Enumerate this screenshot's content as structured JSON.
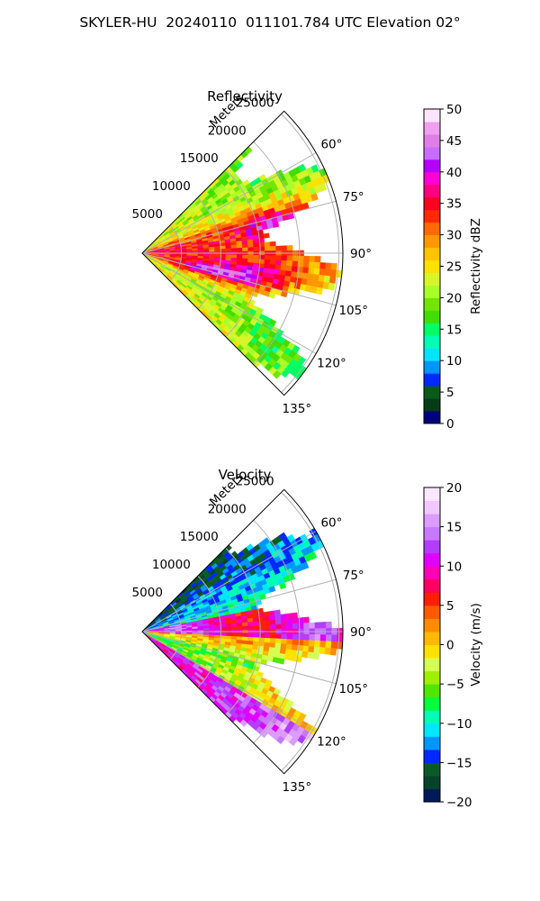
{
  "title": "SKYLER-HU  20240110  011101.784 UTC Elevation 02°",
  "colors": {
    "reflectivity_scale": [
      "#00007f",
      "#063c17",
      "#0a5a1c",
      "#002aff",
      "#0096ff",
      "#00e5ff",
      "#00ffb4",
      "#00ff64",
      "#3fde00",
      "#72e600",
      "#a8ff2a",
      "#d8f52a",
      "#ffe100",
      "#ffc300",
      "#ff9800",
      "#ff6a00",
      "#ff2a00",
      "#ff0020",
      "#ff0080",
      "#ff00d4",
      "#b400ff",
      "#c86cff",
      "#e07ee8",
      "#f0a0f0",
      "#fce4fc"
    ],
    "velocity_scale": [
      "#001a5c",
      "#06432c",
      "#0a5a28",
      "#0028ff",
      "#0096ff",
      "#00e6ff",
      "#00ffb4",
      "#00ff3c",
      "#50e600",
      "#a0f000",
      "#d4ff50",
      "#ffe100",
      "#ffb900",
      "#ff8c00",
      "#ff5a00",
      "#ff1e00",
      "#ff0060",
      "#ff00b4",
      "#e100ff",
      "#b43cff",
      "#c878ff",
      "#dc9bff",
      "#f0c8ff",
      "#fae6ff"
    ],
    "grid": "#b0b0b0"
  },
  "chart_data": [
    {
      "type": "heatmap",
      "subtype": "polar-sector",
      "title": "Reflectivity",
      "radial_label": "Meters",
      "radial_ticks": [
        5000,
        10000,
        15000,
        20000,
        25000
      ],
      "radial_tick_labels": [
        "5000",
        "10000",
        "15000",
        "20000",
        "25000"
      ],
      "rmax": 25500,
      "theta_range_deg": [
        45,
        135
      ],
      "angular_ticks_deg": [
        60,
        75,
        90,
        105,
        120,
        135
      ],
      "angular_tick_labels": [
        "60°",
        "75°",
        "90°",
        "105°",
        "120°",
        "135°"
      ],
      "grid": true,
      "colorbar": {
        "label": "Reflectivity dBZ",
        "vmin": 0,
        "vmax": 50,
        "ticks": [
          0,
          5,
          10,
          15,
          20,
          25,
          30,
          35,
          40,
          45,
          50
        ],
        "tick_labels": [
          "0",
          "5",
          "10",
          "15",
          "20",
          "25",
          "30",
          "35",
          "40",
          "45",
          "50"
        ],
        "placement": "right"
      }
    },
    {
      "type": "heatmap",
      "subtype": "polar-sector",
      "title": "Velocity",
      "radial_label": "Meters",
      "radial_ticks": [
        5000,
        10000,
        15000,
        20000,
        25000
      ],
      "radial_tick_labels": [
        "5000",
        "10000",
        "15000",
        "20000",
        "25000"
      ],
      "rmax": 25500,
      "theta_range_deg": [
        45,
        135
      ],
      "angular_ticks_deg": [
        60,
        75,
        90,
        105,
        120,
        135
      ],
      "angular_tick_labels": [
        "60°",
        "75°",
        "90°",
        "105°",
        "120°",
        "135°"
      ],
      "grid": true,
      "colorbar": {
        "label": "Velocity (m/s)",
        "vmin": -20,
        "vmax": 20,
        "ticks": [
          -20,
          -15,
          -10,
          -5,
          0,
          5,
          10,
          15,
          20
        ],
        "tick_labels": [
          "−20",
          "−15",
          "−10",
          "−5",
          "0",
          "5",
          "10",
          "15",
          "20"
        ],
        "placement": "right"
      }
    }
  ]
}
